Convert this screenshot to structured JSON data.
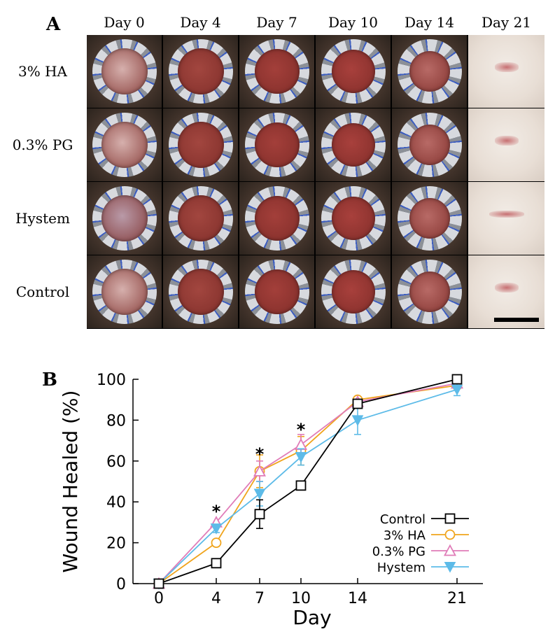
{
  "panel_a": {
    "label": "A",
    "days": [
      "Day 0",
      "Day 4",
      "Day 7",
      "Day 10",
      "Day 14",
      "Day 21"
    ],
    "groups": [
      "3% HA",
      "0.3% PG",
      "Hystem",
      "Control"
    ]
  },
  "chart_data": {
    "label": "B",
    "type": "line",
    "xlabel": "Day",
    "ylabel": "Wound Healed (%)",
    "x": [
      0,
      4,
      7,
      10,
      14,
      21
    ],
    "x_ticks": [
      "0",
      "4",
      "7",
      "10",
      "14",
      "21"
    ],
    "ylim": [
      0,
      100
    ],
    "y_ticks": [
      "0",
      "20",
      "40",
      "60",
      "80",
      "100"
    ],
    "legend_position": "bottom-right",
    "series": [
      {
        "name": "Control",
        "marker": "square-open",
        "color": "#000000",
        "values": [
          0,
          10,
          34,
          48,
          88,
          100
        ],
        "errors": [
          0,
          0,
          7,
          0,
          0,
          0
        ]
      },
      {
        "name": "3% HA",
        "marker": "circle-open",
        "color": "#f0a41c",
        "values": [
          0,
          20,
          55,
          65,
          90,
          97
        ],
        "errors": [
          0,
          0,
          8,
          7,
          0,
          0
        ]
      },
      {
        "name": "0.3% PG",
        "marker": "triangle-open",
        "color": "#e07cb8",
        "values": [
          0,
          30,
          55,
          68,
          89,
          98
        ],
        "errors": [
          0,
          0,
          5,
          5,
          0,
          0
        ]
      },
      {
        "name": "Hystem",
        "marker": "triangle-down-filled",
        "color": "#5dbbe8",
        "values": [
          0,
          27,
          44,
          62,
          80,
          95
        ],
        "errors": [
          0,
          2,
          6,
          4,
          7,
          3
        ]
      }
    ],
    "annotations": [
      {
        "text": "*",
        "x": 4,
        "y": 36
      },
      {
        "text": "*",
        "x": 7,
        "y": 64
      },
      {
        "text": "*",
        "x": 10,
        "y": 76
      }
    ]
  }
}
